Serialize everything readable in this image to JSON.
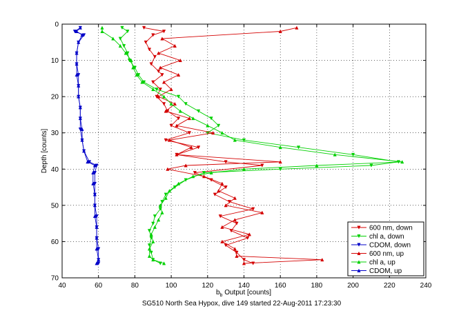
{
  "chart_data": {
    "type": "line",
    "xlabel_main": "b",
    "xlabel_sub": "b",
    "xlabel_rest": " Output [counts]",
    "ylabel": "Depth [counts]",
    "footer": "SG510 North Sea Hypox, dive 149 started 22-Aug-2011 17:23:30",
    "xlim": [
      40,
      240
    ],
    "ylim": [
      0,
      70
    ],
    "y_reversed": true,
    "x_ticks": [
      40,
      60,
      80,
      100,
      120,
      140,
      160,
      180,
      200,
      220,
      240
    ],
    "y_ticks": [
      0,
      10,
      20,
      30,
      40,
      50,
      60,
      70
    ],
    "grid": true,
    "legend_position": "bottom-right",
    "colors": {
      "red": "#d40000",
      "green": "#00d000",
      "blue": "#0000c8"
    },
    "series": [
      {
        "name": "600 nm, down",
        "color": "#d40000",
        "marker": "down",
        "depth": [
          1,
          2,
          3,
          5,
          7,
          9,
          11,
          13,
          14,
          16,
          18,
          20,
          22,
          24,
          26,
          28,
          30,
          32,
          34,
          36,
          38,
          39,
          41,
          43,
          45,
          47,
          49,
          51,
          53,
          55,
          57,
          59,
          61,
          63,
          65,
          66
        ],
        "x": [
          85,
          96,
          90,
          86,
          88,
          91,
          89,
          93,
          95,
          90,
          94,
          92,
          96,
          98,
          104,
          100,
          110,
          97,
          115,
          103,
          130,
          150,
          113,
          122,
          130,
          124,
          132,
          145,
          127,
          136,
          133,
          142,
          130,
          136,
          140,
          145
        ]
      },
      {
        "name": "chl a, down",
        "color": "#00d000",
        "marker": "down",
        "depth": [
          1,
          2,
          4,
          6,
          8,
          10,
          12,
          14,
          16,
          18,
          20,
          22,
          24,
          26,
          28,
          30,
          32,
          34,
          36,
          38,
          39,
          40,
          41,
          43,
          45,
          47,
          49,
          51,
          53,
          55,
          57,
          59,
          61,
          63,
          65,
          66
        ],
        "x": [
          73,
          76,
          72,
          74,
          76,
          77,
          80,
          82,
          85,
          92,
          104,
          108,
          115,
          122,
          126,
          120,
          140,
          170,
          200,
          225,
          210,
          160,
          118,
          108,
          102,
          97,
          95,
          94,
          91,
          90,
          88,
          89,
          88,
          89,
          90,
          94
        ]
      },
      {
        "name": "CDOM, down",
        "color": "#0000c8",
        "marker": "down",
        "depth": [
          1,
          2,
          3,
          5,
          8,
          11,
          14,
          17,
          20,
          23,
          26,
          29,
          32,
          35,
          38,
          39,
          41,
          44,
          47,
          50,
          53,
          56,
          59,
          62,
          65,
          66
        ],
        "x": [
          50,
          47,
          52,
          49,
          48,
          48,
          49,
          49,
          49,
          50,
          50,
          50,
          51,
          52,
          55,
          59,
          58,
          58,
          58,
          58,
          59,
          59,
          59,
          60,
          60,
          60
        ]
      },
      {
        "name": "600 nm, up",
        "color": "#d40000",
        "marker": "up",
        "depth": [
          66,
          65,
          64,
          62,
          60,
          58,
          56,
          54,
          52,
          50,
          48,
          46,
          44,
          42,
          40,
          39,
          38,
          36,
          34,
          32,
          30,
          28,
          26,
          24,
          22,
          20,
          18,
          16,
          14,
          12,
          10,
          8,
          6,
          4,
          2,
          1
        ],
        "x": [
          140,
          183,
          136,
          135,
          128,
          143,
          128,
          135,
          150,
          130,
          135,
          126,
          128,
          118,
          98,
          108,
          160,
          103,
          111,
          99,
          123,
          103,
          110,
          97,
          102,
          93,
          100,
          96,
          104,
          94,
          105,
          93,
          102,
          95,
          160,
          169
        ]
      },
      {
        "name": "chl a, up",
        "color": "#00d000",
        "marker": "up",
        "depth": [
          66,
          65,
          64,
          62,
          60,
          58,
          56,
          54,
          52,
          50,
          48,
          46,
          44,
          42,
          41,
          40,
          39,
          38,
          36,
          34,
          32,
          30,
          28,
          26,
          24,
          22,
          20,
          18,
          16,
          14,
          12,
          10,
          8,
          6,
          4,
          2,
          1
        ],
        "x": [
          96,
          90,
          88,
          88,
          90,
          89,
          91,
          93,
          95,
          94,
          97,
          99,
          104,
          112,
          122,
          140,
          180,
          227,
          190,
          160,
          135,
          128,
          120,
          112,
          105,
          100,
          96,
          90,
          84,
          81,
          79,
          78,
          75,
          72,
          68,
          62,
          62
        ]
      },
      {
        "name": "CDOM, up",
        "color": "#0000c8",
        "marker": "up",
        "depth": [
          66,
          65,
          62,
          59,
          56,
          53,
          50,
          47,
          44,
          41,
          39,
          38,
          35,
          32,
          29,
          26,
          23,
          20,
          17,
          14,
          11,
          8,
          5,
          3,
          2,
          1
        ],
        "x": [
          59,
          60,
          59,
          59,
          59,
          58,
          58,
          58,
          57,
          57,
          58,
          54,
          52,
          51,
          51,
          50,
          50,
          49,
          49,
          48,
          48,
          48,
          49,
          51,
          48,
          50
        ]
      }
    ]
  }
}
